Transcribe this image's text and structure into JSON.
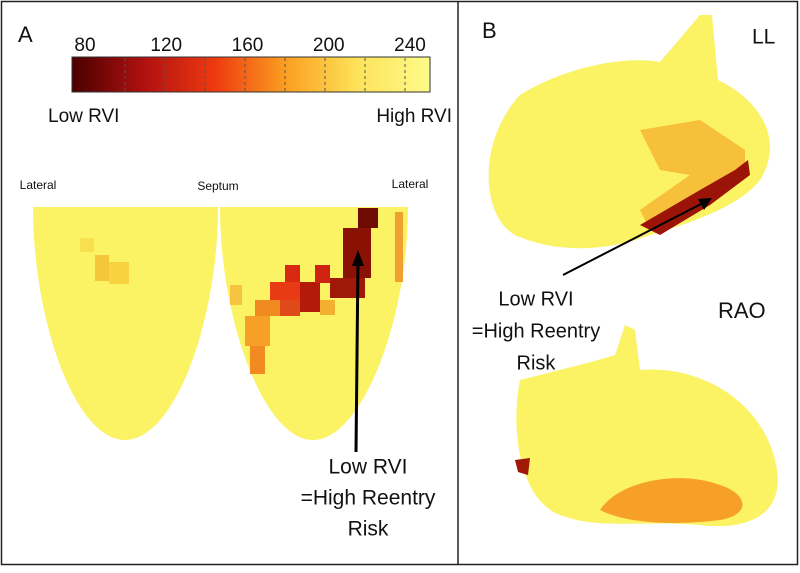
{
  "panel_a": {
    "label": "A",
    "colorbar": {
      "ticks": [
        80,
        120,
        160,
        200,
        240
      ],
      "low_label": "Low RVI",
      "high_label": "High RVI"
    },
    "map_labels": [
      "Lateral",
      "Septum",
      "Lateral"
    ],
    "annotation": [
      "Low RVI",
      "=High Reentry",
      "Risk"
    ]
  },
  "panel_b": {
    "label": "B",
    "views": [
      "LL",
      "RAO"
    ],
    "annotation": [
      "Low RVI",
      "=High Reentry",
      "Risk"
    ]
  }
}
